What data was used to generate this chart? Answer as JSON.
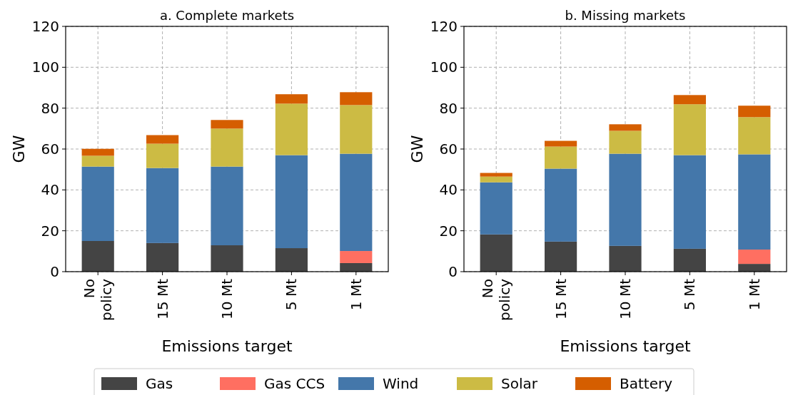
{
  "chart_data": [
    {
      "type": "bar",
      "title": "a. Complete markets",
      "xlabel": "Emissions target",
      "ylabel": "GW",
      "categories": [
        "No\npolicy",
        "15 Mt",
        "10 Mt",
        "5 Mt",
        "1 Mt"
      ],
      "stacked": true,
      "ylim": [
        0,
        120
      ],
      "yticks": [
        0,
        20,
        40,
        60,
        80,
        100,
        120
      ],
      "grid": true,
      "legend": "bottom",
      "series": [
        {
          "name": "Gas",
          "color": "#444444",
          "values": [
            15.0,
            14.0,
            12.9,
            11.5,
            4.2
          ]
        },
        {
          "name": "Gas CCS",
          "color": "#ff6f61",
          "values": [
            0,
            0,
            0,
            0,
            5.9
          ]
        },
        {
          "name": "Wind",
          "color": "#4477aa",
          "values": [
            36.4,
            36.7,
            38.5,
            45.5,
            47.6
          ]
        },
        {
          "name": "Solar",
          "color": "#ccbb44",
          "values": [
            5.3,
            11.9,
            18.6,
            25.2,
            23.8
          ]
        },
        {
          "name": "Battery",
          "color": "#d55e00",
          "values": [
            3.4,
            4.2,
            4.2,
            4.6,
            6.3
          ]
        }
      ]
    },
    {
      "type": "bar",
      "title": "b. Missing markets",
      "xlabel": "Emissions target",
      "ylabel": "GW",
      "categories": [
        "No\npolicy",
        "15 Mt",
        "10 Mt",
        "5 Mt",
        "1 Mt"
      ],
      "stacked": true,
      "ylim": [
        0,
        120
      ],
      "yticks": [
        0,
        20,
        40,
        60,
        80,
        100,
        120
      ],
      "grid": true,
      "series": [
        {
          "color": "#444444",
          "values": [
            18.2,
            14.7,
            12.6,
            11.2,
            3.8
          ]
        },
        {
          "color": "#ff6f61",
          "values": [
            0,
            0,
            0,
            0,
            7.0
          ]
        },
        {
          "color": "#4477aa",
          "values": [
            25.5,
            35.7,
            45.1,
            45.8,
            46.6
          ]
        },
        {
          "color": "#ccbb44",
          "values": [
            2.8,
            10.8,
            11.2,
            24.9,
            18.2
          ]
        },
        {
          "color": "#d55e00",
          "values": [
            1.8,
            2.8,
            3.2,
            4.5,
            5.6
          ]
        }
      ]
    }
  ]
}
